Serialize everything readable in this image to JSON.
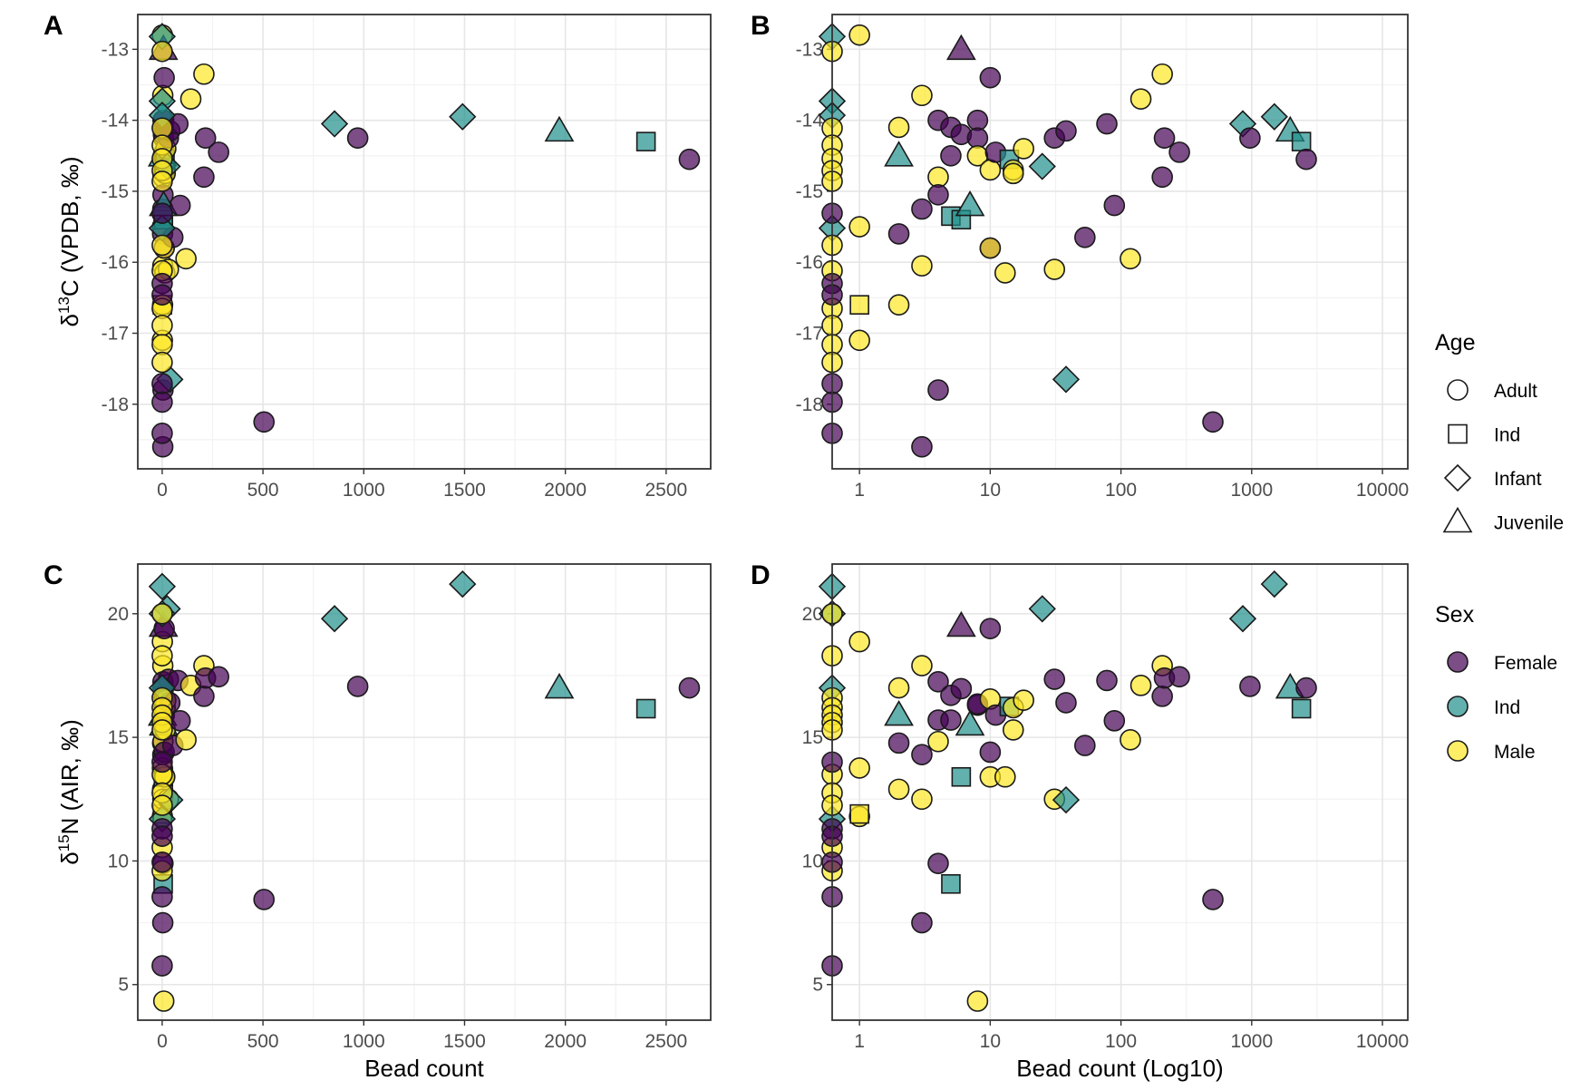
{
  "chart_data": {
    "type": "scatter",
    "columns": [
      "bead_count",
      "d13C",
      "d15N",
      "sex",
      "age"
    ],
    "rows": [
      [
        1,
        -12.8,
        18.87,
        "Male",
        "Adult"
      ],
      [
        1,
        -15.5,
        13.76,
        "Male",
        "Adult"
      ],
      [
        1,
        -17.1,
        11.8,
        "Male",
        "Adult"
      ],
      [
        1,
        -16.6,
        11.9,
        "Male",
        "Ind"
      ],
      [
        2,
        -14.1,
        17.0,
        "Male",
        "Adult"
      ],
      [
        2,
        -15.6,
        14.77,
        "Female",
        "Adult"
      ],
      [
        2,
        -16.6,
        12.9,
        "Male",
        "Adult"
      ],
      [
        2,
        -14.5,
        15.9,
        "Ind",
        "Juvenile"
      ],
      [
        3,
        -13.65,
        17.9,
        "Male",
        "Adult"
      ],
      [
        3,
        -15.25,
        14.3,
        "Female",
        "Adult"
      ],
      [
        3,
        -16.05,
        12.5,
        "Male",
        "Adult"
      ],
      [
        3,
        -18.6,
        7.5,
        "Female",
        "Adult"
      ],
      [
        4,
        -14.0,
        17.25,
        "Female",
        "Adult"
      ],
      [
        4,
        -14.8,
        14.83,
        "Male",
        "Adult"
      ],
      [
        4,
        -15.05,
        15.7,
        "Female",
        "Adult"
      ],
      [
        4,
        -17.8,
        9.9,
        "Female",
        "Adult"
      ],
      [
        5,
        -14.1,
        16.7,
        "Female",
        "Adult"
      ],
      [
        5,
        -14.5,
        15.7,
        "Female",
        "Adult"
      ],
      [
        5,
        -15.35,
        9.07,
        "Ind",
        "Ind"
      ],
      [
        6,
        -13.0,
        19.5,
        "Female",
        "Juvenile"
      ],
      [
        6,
        -14.2,
        16.97,
        "Female",
        "Adult"
      ],
      [
        6,
        -15.4,
        13.4,
        "Ind",
        "Ind"
      ],
      [
        7,
        -15.2,
        15.5,
        "Ind",
        "Juvenile"
      ],
      [
        8,
        -14.0,
        16.3,
        "Female",
        "Adult"
      ],
      [
        8,
        -14.25,
        16.35,
        "Female",
        "Adult"
      ],
      [
        8,
        -14.5,
        4.33,
        "Male",
        "Adult"
      ],
      [
        10,
        -13.4,
        19.4,
        "Female",
        "Adult"
      ],
      [
        10,
        -14.7,
        16.55,
        "Male",
        "Adult"
      ],
      [
        10,
        -15.8,
        14.4,
        "Female",
        "Adult"
      ],
      [
        10,
        -15.8,
        13.4,
        "Male",
        "Adult"
      ],
      [
        11,
        -14.45,
        15.9,
        "Female",
        "Adult"
      ],
      [
        13,
        -16.15,
        13.4,
        "Male",
        "Adult"
      ],
      [
        14,
        -14.55,
        16.25,
        "Ind",
        "Ind"
      ],
      [
        15,
        -14.7,
        16.2,
        "Male",
        "Adult"
      ],
      [
        15,
        -14.75,
        15.3,
        "Male",
        "Adult"
      ],
      [
        18,
        -14.4,
        16.5,
        "Male",
        "Adult"
      ],
      [
        25,
        -14.65,
        20.2,
        "Ind",
        "Infant"
      ],
      [
        31,
        -14.25,
        17.35,
        "Female",
        "Adult"
      ],
      [
        31,
        -16.1,
        12.5,
        "Male",
        "Adult"
      ],
      [
        38,
        -14.15,
        16.4,
        "Female",
        "Adult"
      ],
      [
        38,
        -17.65,
        12.47,
        "Ind",
        "Infant"
      ],
      [
        53,
        -15.65,
        14.67,
        "Female",
        "Adult"
      ],
      [
        78,
        -14.05,
        17.3,
        "Female",
        "Adult"
      ],
      [
        89,
        -15.2,
        15.67,
        "Female",
        "Adult"
      ],
      [
        118,
        -15.95,
        14.9,
        "Male",
        "Adult"
      ],
      [
        142,
        -13.7,
        17.1,
        "Male",
        "Adult"
      ],
      [
        207,
        -13.35,
        17.9,
        "Male",
        "Adult"
      ],
      [
        207,
        -14.8,
        16.66,
        "Female",
        "Adult"
      ],
      [
        215,
        -14.25,
        17.4,
        "Female",
        "Adult"
      ],
      [
        280,
        -14.45,
        17.45,
        "Female",
        "Adult"
      ],
      [
        505,
        -18.25,
        8.44,
        "Female",
        "Adult"
      ],
      [
        855,
        -14.05,
        19.8,
        "Ind",
        "Infant"
      ],
      [
        970,
        -14.25,
        17.06,
        "Female",
        "Adult"
      ],
      [
        1490,
        -13.95,
        21.2,
        "Ind",
        "Infant"
      ],
      [
        1970,
        -14.15,
        17.0,
        "Ind",
        "Juvenile"
      ],
      [
        2400,
        -14.3,
        16.16,
        "Ind",
        "Ind"
      ],
      [
        2615,
        -14.55,
        17.0,
        "Female",
        "Adult"
      ],
      [
        0,
        -12.82,
        21.1,
        "Ind",
        "Infant"
      ],
      [
        0,
        -13.73,
        20.0,
        "Ind",
        "Infant"
      ],
      [
        0,
        -13.93,
        17.0,
        "Ind",
        "Infant"
      ],
      [
        0,
        -15.52,
        11.7,
        "Ind",
        "Infant"
      ],
      [
        0,
        -13.03,
        20.0,
        "Male",
        "Adult"
      ],
      [
        0,
        -14.11,
        18.3,
        "Male",
        "Adult"
      ],
      [
        0,
        -14.35,
        16.6,
        "Male",
        "Adult"
      ],
      [
        0,
        -14.54,
        16.2,
        "Male",
        "Adult"
      ],
      [
        0,
        -14.71,
        15.9,
        "Male",
        "Adult"
      ],
      [
        0,
        -14.86,
        15.6,
        "Male",
        "Adult"
      ],
      [
        0,
        -15.76,
        15.3,
        "Male",
        "Adult"
      ],
      [
        0,
        -16.12,
        13.5,
        "Male",
        "Adult"
      ],
      [
        0,
        -16.65,
        12.75,
        "Male",
        "Adult"
      ],
      [
        0,
        -16.89,
        12.25,
        "Male",
        "Adult"
      ],
      [
        0,
        -17.16,
        10.55,
        "Male",
        "Adult"
      ],
      [
        0,
        -17.41,
        9.6,
        "Male",
        "Adult"
      ],
      [
        0,
        -15.31,
        14.0,
        "Female",
        "Adult"
      ],
      [
        0,
        -16.3,
        5.76,
        "Female",
        "Adult"
      ],
      [
        0,
        -16.46,
        11.3,
        "Female",
        "Adult"
      ],
      [
        0,
        -17.71,
        11.0,
        "Female",
        "Adult"
      ],
      [
        0,
        -17.97,
        9.95,
        "Female",
        "Adult"
      ],
      [
        0,
        -18.41,
        8.55,
        "Female",
        "Adult"
      ]
    ],
    "panels": [
      {
        "label": "A",
        "x": "bead_count",
        "y": "d13C",
        "xscale": "linear",
        "xlim": [
          -121,
          2721
        ],
        "ylim": [
          -18.91,
          -12.51
        ],
        "xticks": [
          0,
          500,
          1000,
          1500,
          2000,
          2500
        ],
        "yticks": [
          -13,
          -14,
          -15,
          -16,
          -17,
          -18
        ],
        "xlabel": "",
        "ylabel": {
          "prefix": "δ",
          "sup": "13",
          "rest": "C (VPDB, ‰)"
        }
      },
      {
        "label": "B",
        "x": "bead_count",
        "y": "d13C",
        "xscale": "log10",
        "xlim": [
          0.618,
          15630
        ],
        "ylim": [
          -18.91,
          -12.51
        ],
        "xticks": [
          1,
          10,
          100,
          1000,
          10000
        ],
        "yticks": [
          -13,
          -14,
          -15,
          -16,
          -17,
          -18
        ],
        "xlabel": "",
        "ylabel": null
      },
      {
        "label": "C",
        "x": "bead_count",
        "y": "d15N",
        "xscale": "linear",
        "xlim": [
          -121,
          2721
        ],
        "ylim": [
          3.56,
          22.01
        ],
        "xticks": [
          0,
          500,
          1000,
          1500,
          2000,
          2500
        ],
        "yticks": [
          5,
          10,
          15,
          20
        ],
        "xlabel": "Bead count",
        "ylabel": {
          "prefix": "δ",
          "sup": "15",
          "rest": "N (AIR, ‰)"
        }
      },
      {
        "label": "D",
        "x": "bead_count",
        "y": "d15N",
        "xscale": "log10",
        "xlim": [
          0.618,
          15630
        ],
        "ylim": [
          3.56,
          22.01
        ],
        "xticks": [
          1,
          10,
          100,
          1000,
          10000
        ],
        "yticks": [
          5,
          10,
          15,
          20
        ],
        "xlabel": "Bead count (Log10)",
        "ylabel": null
      }
    ],
    "grid": true,
    "legend": {
      "placement": "right",
      "age": {
        "title": "Age",
        "items": [
          {
            "label": "Adult",
            "shape": "circle"
          },
          {
            "label": "Ind",
            "shape": "square"
          },
          {
            "label": "Infant",
            "shape": "diamond"
          },
          {
            "label": "Juvenile",
            "shape": "triangle"
          }
        ]
      },
      "sex": {
        "title": "Sex",
        "items": [
          {
            "label": "Female",
            "color": "#440154"
          },
          {
            "label": "Ind",
            "color": "#21908C"
          },
          {
            "label": "Male",
            "color": "#FDE725"
          }
        ]
      }
    }
  }
}
